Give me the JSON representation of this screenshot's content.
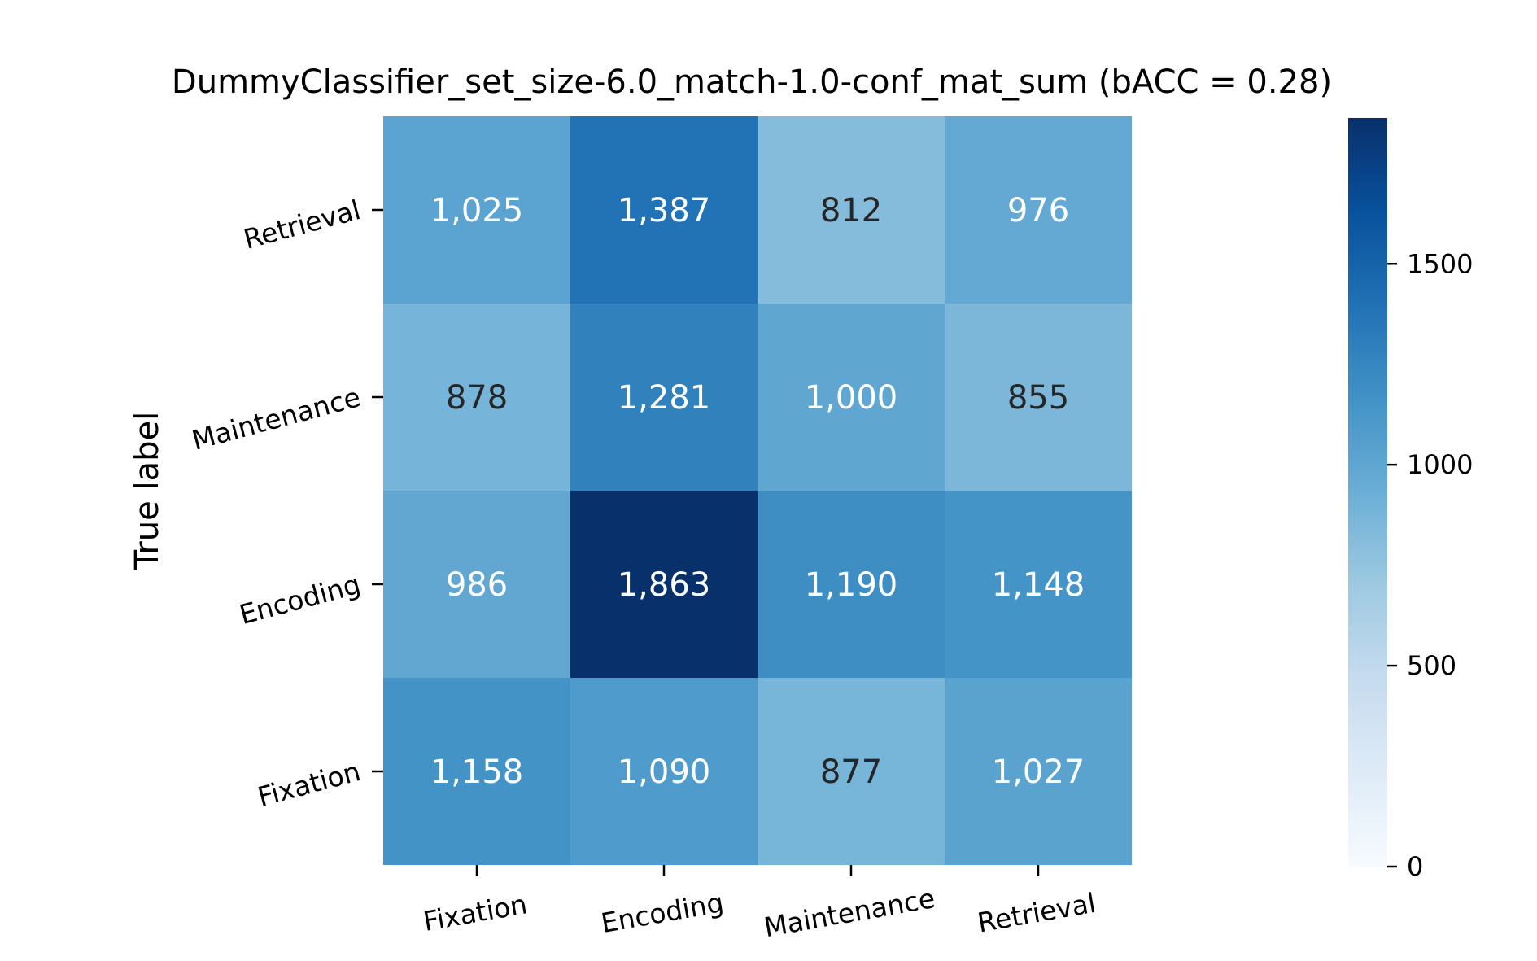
{
  "chart_data": {
    "type": "heatmap",
    "title": "DummyClassifier_set_size-6.0_match-1.0-conf_mat_sum (bACC = 0.28)",
    "ylabel": "True label",
    "xlabel": "",
    "x_categories": [
      "Fixation",
      "Encoding",
      "Maintenance",
      "Retrieval"
    ],
    "y_categories": [
      "Retrieval",
      "Maintenance",
      "Encoding",
      "Fixation"
    ],
    "values": [
      [
        1025,
        1387,
        812,
        976
      ],
      [
        878,
        1281,
        1000,
        855
      ],
      [
        986,
        1863,
        1190,
        1148
      ],
      [
        1158,
        1090,
        877,
        1027
      ]
    ],
    "cell_labels": [
      [
        "1,025",
        "1,387",
        "812",
        "976"
      ],
      [
        "878",
        "1,281",
        "1,000",
        "855"
      ],
      [
        "986",
        "1,863",
        "1,190",
        "1,148"
      ],
      [
        "1,158",
        "1,090",
        "877",
        "1,027"
      ]
    ],
    "colormap": "Blues",
    "color_range": [
      0,
      1863
    ],
    "colorbar": {
      "ticks": [
        0,
        500,
        1000,
        1500
      ],
      "tick_labels": [
        "0",
        "500",
        "1000",
        "1500"
      ]
    },
    "colors": {
      "text_light": "#ffffff",
      "text_dark": "#262626",
      "axis": "#000000"
    }
  }
}
